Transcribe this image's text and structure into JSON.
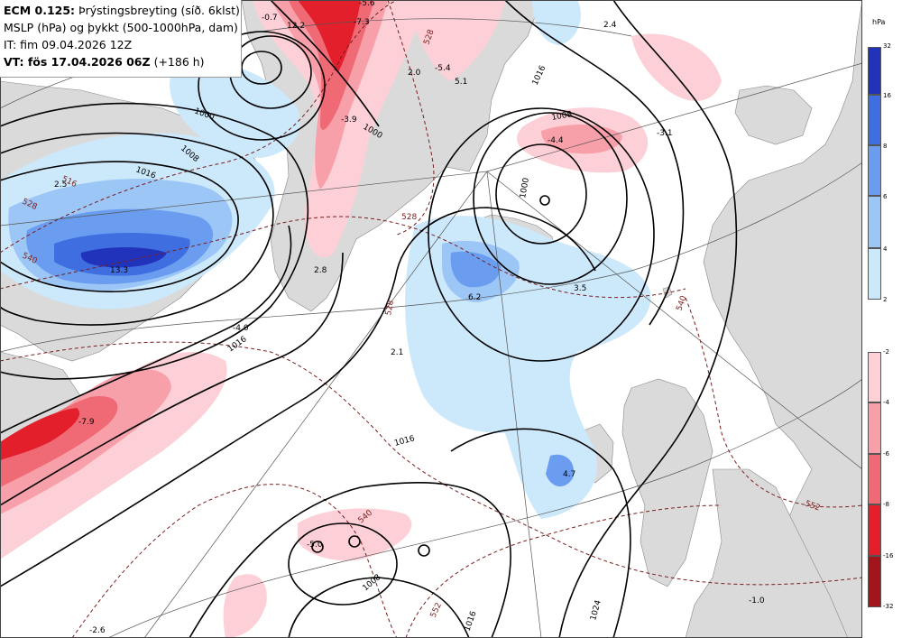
{
  "header": {
    "line1_model": "ECM 0.125:",
    "line1_field": "Þrýstingsbreyting (síð. 6klst)",
    "line2": "MSLP (hPa) og þykkt (500-1000hPa, dam)",
    "line3": "IT: fim 09.04.2026 12Z",
    "line4_vt": "VT: fös 17.04.2026 06Z",
    "line4_lead": "(+186 h)"
  },
  "legend": {
    "unit": "hPa",
    "increase_ticks": [
      "32",
      "16",
      "8",
      "6",
      "4",
      "2"
    ],
    "decrease_ticks": [
      "-2",
      "-4",
      "-6",
      "-8",
      "-16",
      "-32"
    ],
    "increase_colors": [
      "#2233bb",
      "#3f6ee0",
      "#6a9df0",
      "#9cc6f6",
      "#cce8fb"
    ],
    "decrease_colors": [
      "#fcd0d6",
      "#f8a0aa",
      "#f06a76",
      "#e21f2a",
      "#a3141b"
    ]
  },
  "map": {
    "land_color": "#dadada",
    "isobar_labels": [
      "1000",
      "1008",
      "1016",
      "1000",
      "1016",
      "1016",
      "1008",
      "1000",
      "1008",
      "1016",
      "1024",
      "1016"
    ],
    "thickness_labels": [
      "516",
      "528",
      "540",
      "528",
      "528",
      "540",
      "552",
      "540",
      "552",
      "528"
    ],
    "pressure_change_values": [
      "12.2",
      "-5.6",
      "-7.3",
      "-0.7",
      "2.4",
      "-5.4",
      "-3.9",
      "2.0",
      "5.1",
      "2.5",
      "-4.4",
      "-3.1",
      "13.3",
      "2.8",
      "6.2",
      "3.5",
      "-4.0",
      "2.1",
      "-7.9",
      "4.7",
      "-5.0",
      "-2.6",
      "-1.0"
    ]
  }
}
